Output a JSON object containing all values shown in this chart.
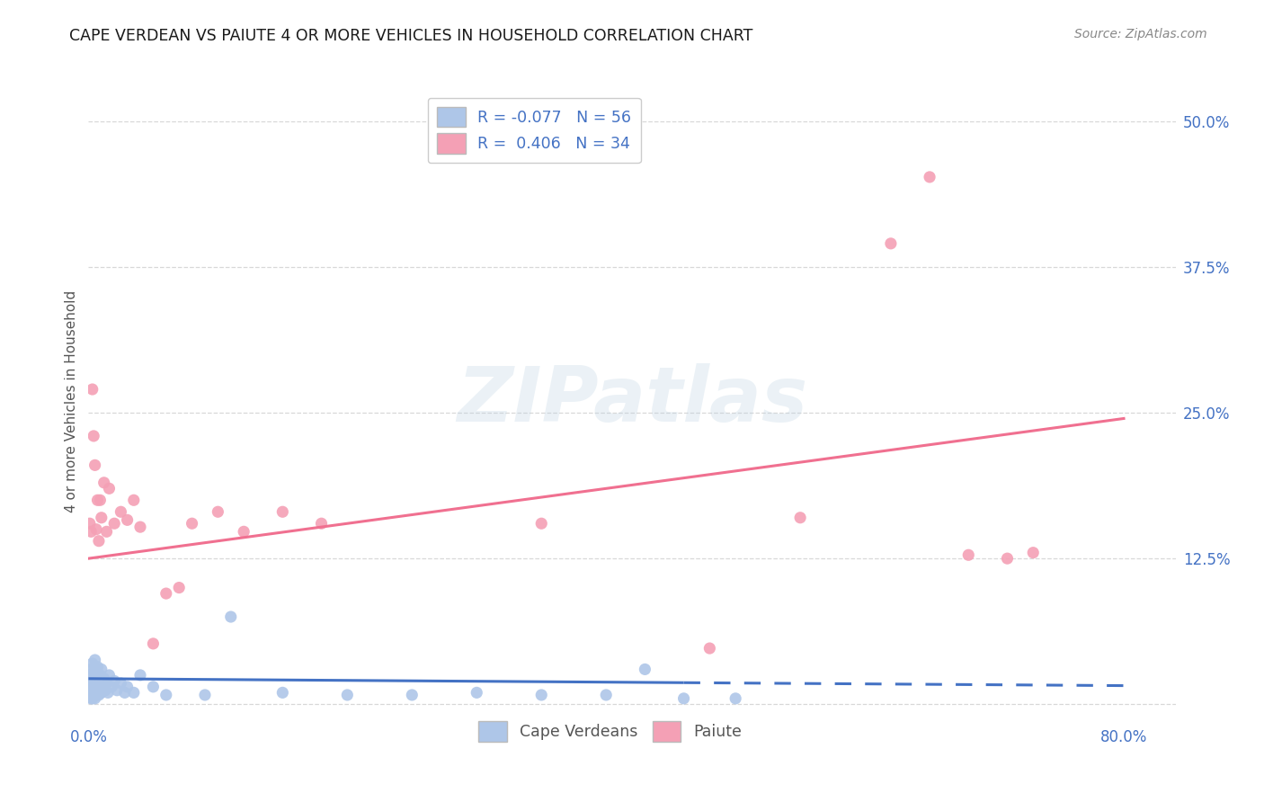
{
  "title": "CAPE VERDEAN VS PAIUTE 4 OR MORE VEHICLES IN HOUSEHOLD CORRELATION CHART",
  "source": "Source: ZipAtlas.com",
  "ylabel": "4 or more Vehicles in Household",
  "xlim": [
    0.0,
    0.84
  ],
  "ylim": [
    -0.015,
    0.535
  ],
  "yticks": [
    0.0,
    0.125,
    0.25,
    0.375,
    0.5
  ],
  "ytick_labels": [
    "",
    "12.5%",
    "25.0%",
    "37.5%",
    "50.0%"
  ],
  "xticks": [
    0.0,
    0.16,
    0.32,
    0.48,
    0.64,
    0.8
  ],
  "xtick_labels": [
    "0.0%",
    "",
    "",
    "",
    "",
    "80.0%"
  ],
  "cape_verdean_R": -0.077,
  "cape_verdean_N": 56,
  "paiute_R": 0.406,
  "paiute_N": 34,
  "cape_verdean_color": "#aec6e8",
  "paiute_color": "#f4a0b5",
  "cape_verdean_line_color": "#4472c4",
  "paiute_line_color": "#f07090",
  "background_color": "#ffffff",
  "grid_color": "#d8d8d8",
  "watermark_text": "ZIPatlas",
  "cv_line_x0": 0.0,
  "cv_line_x_solid_end": 0.46,
  "cv_line_x1": 0.8,
  "cv_line_y0": 0.022,
  "cv_line_y1": 0.016,
  "p_line_x0": 0.0,
  "p_line_x1": 0.8,
  "p_line_y0": 0.125,
  "p_line_y1": 0.245,
  "cape_verdean_x": [
    0.001,
    0.001,
    0.001,
    0.002,
    0.002,
    0.002,
    0.002,
    0.003,
    0.003,
    0.003,
    0.003,
    0.004,
    0.004,
    0.004,
    0.005,
    0.005,
    0.005,
    0.005,
    0.006,
    0.006,
    0.006,
    0.007,
    0.007,
    0.008,
    0.008,
    0.009,
    0.009,
    0.01,
    0.01,
    0.011,
    0.012,
    0.013,
    0.014,
    0.015,
    0.016,
    0.018,
    0.02,
    0.022,
    0.025,
    0.028,
    0.03,
    0.035,
    0.04,
    0.05,
    0.06,
    0.09,
    0.11,
    0.15,
    0.2,
    0.25,
    0.3,
    0.35,
    0.4,
    0.43,
    0.46,
    0.5
  ],
  "cape_verdean_y": [
    0.025,
    0.015,
    0.008,
    0.03,
    0.02,
    0.01,
    0.005,
    0.035,
    0.018,
    0.01,
    0.005,
    0.028,
    0.015,
    0.008,
    0.038,
    0.022,
    0.012,
    0.005,
    0.025,
    0.015,
    0.008,
    0.032,
    0.01,
    0.02,
    0.008,
    0.025,
    0.012,
    0.03,
    0.01,
    0.018,
    0.022,
    0.012,
    0.018,
    0.01,
    0.025,
    0.015,
    0.02,
    0.012,
    0.018,
    0.01,
    0.015,
    0.01,
    0.025,
    0.015,
    0.008,
    0.008,
    0.075,
    0.01,
    0.008,
    0.008,
    0.01,
    0.008,
    0.008,
    0.03,
    0.005,
    0.005
  ],
  "paiute_x": [
    0.001,
    0.002,
    0.003,
    0.004,
    0.005,
    0.006,
    0.007,
    0.008,
    0.009,
    0.01,
    0.012,
    0.014,
    0.016,
    0.02,
    0.025,
    0.03,
    0.035,
    0.04,
    0.05,
    0.06,
    0.07,
    0.08,
    0.1,
    0.12,
    0.15,
    0.18,
    0.35,
    0.48,
    0.55,
    0.62,
    0.65,
    0.68,
    0.71,
    0.73
  ],
  "paiute_y": [
    0.155,
    0.148,
    0.27,
    0.23,
    0.205,
    0.15,
    0.175,
    0.14,
    0.175,
    0.16,
    0.19,
    0.148,
    0.185,
    0.155,
    0.165,
    0.158,
    0.175,
    0.152,
    0.052,
    0.095,
    0.1,
    0.155,
    0.165,
    0.148,
    0.165,
    0.155,
    0.155,
    0.048,
    0.16,
    0.395,
    0.452,
    0.128,
    0.125,
    0.13
  ]
}
